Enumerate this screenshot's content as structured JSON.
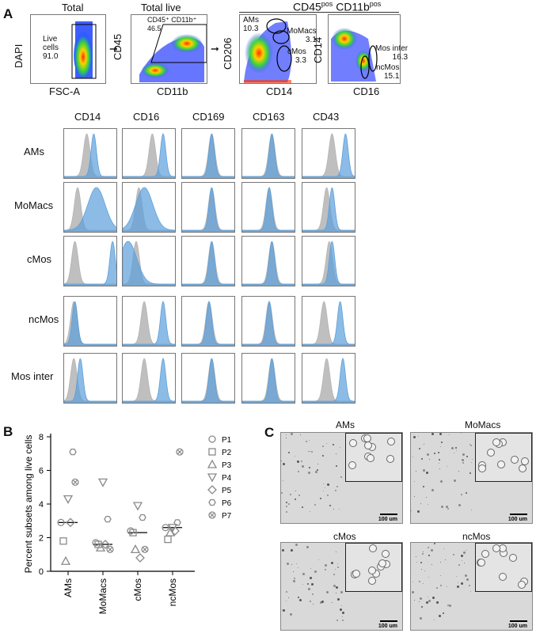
{
  "panel_labels": {
    "a": "A",
    "b": "B",
    "c": "C"
  },
  "flow": {
    "plot1": {
      "title": "Total",
      "ylabel": "DAPI",
      "xlabel": "FSC-A",
      "gate_label": "Live\ncells\n91.0"
    },
    "plot2": {
      "title": "Total live",
      "ylabel": "CD45",
      "xlabel": "CD11b",
      "gate_label": "CD45⁺ CD11b⁺\n46.5"
    },
    "group_title_part1": "CD45",
    "group_title_sup1": "pos",
    "group_title_part2": " CD11b",
    "group_title_sup2": "pos",
    "plot3": {
      "ylabel": "CD206",
      "xlabel": "CD14",
      "gates": [
        {
          "name": "AMs",
          "value": "10.3"
        },
        {
          "name": "MoMacs",
          "value": "3.1"
        },
        {
          "name": "cMos",
          "value": "3.3"
        }
      ]
    },
    "plot4": {
      "ylabel": "CD14",
      "xlabel": "CD16",
      "gates": [
        {
          "name": "Mos inter",
          "value": "16.3"
        },
        {
          "name": "ncMos",
          "value": "15.1"
        }
      ]
    }
  },
  "histograms": {
    "columns": [
      "CD14",
      "CD16",
      "CD169",
      "CD163",
      "CD43"
    ],
    "rows": [
      "AMs",
      "MoMacs",
      "cMos",
      "ncMos",
      "Mos inter"
    ],
    "colors": {
      "control": "#b4b4b4",
      "stain": "#5b9fdc",
      "stain_dark": "#2f6fb8"
    }
  },
  "chart_data": {
    "type": "scatter",
    "title": "",
    "xlabel": "",
    "ylabel": "Percent subsets among live cells",
    "categories": [
      "AMs",
      "MoMacs",
      "cMos",
      "ncMos"
    ],
    "ylim": [
      0,
      8
    ],
    "yticks": [
      0,
      2,
      4,
      6,
      8
    ],
    "series": [
      {
        "name": "P1",
        "marker": "circle",
        "values": [
          2.9,
          1.7,
          2.4,
          2.6
        ]
      },
      {
        "name": "P2",
        "marker": "square",
        "values": [
          1.8,
          1.6,
          2.3,
          1.9
        ]
      },
      {
        "name": "P3",
        "marker": "triangle-up",
        "values": [
          0.6,
          1.4,
          1.3,
          2.3
        ]
      },
      {
        "name": "P4",
        "marker": "triangle-down",
        "values": [
          4.3,
          5.3,
          3.9,
          2.6
        ]
      },
      {
        "name": "P5",
        "marker": "diamond",
        "values": [
          2.9,
          1.6,
          0.8,
          2.4
        ]
      },
      {
        "name": "P6",
        "marker": "hexagon",
        "values": [
          7.1,
          3.1,
          3.2,
          2.9
        ]
      },
      {
        "name": "P7",
        "marker": "circle-x",
        "values": [
          5.3,
          1.3,
          1.3,
          7.1
        ]
      }
    ],
    "medians": [
      2.9,
      1.6,
      2.3,
      2.6
    ],
    "marker_color": "#8a8a8a"
  },
  "micrographs": [
    {
      "title": "AMs",
      "scale": "100 um"
    },
    {
      "title": "MoMacs",
      "scale": "100 um"
    },
    {
      "title": "cMos",
      "scale": "100 um"
    },
    {
      "title": "ncMos",
      "scale": "100 um"
    }
  ]
}
